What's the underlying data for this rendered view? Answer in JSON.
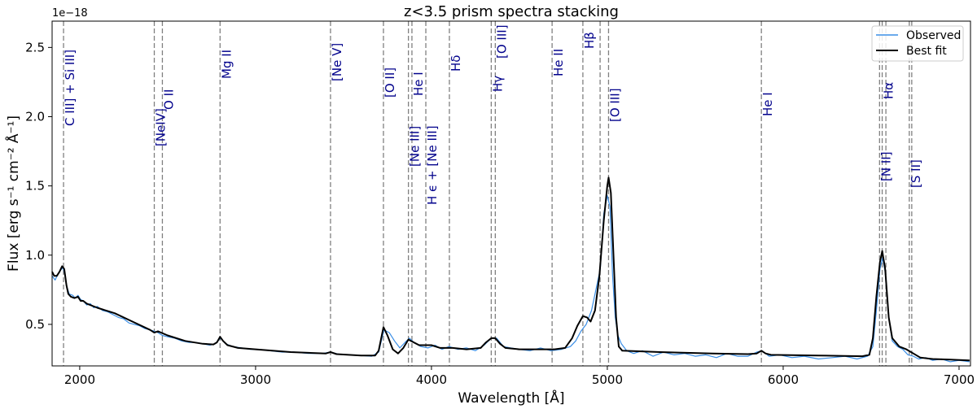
{
  "chart_data": {
    "type": "line",
    "title": "z<3.5 prism spectra stacking",
    "xlabel": "Wavelength [Å]",
    "ylabel": "Flux  [erg s⁻¹ cm⁻² Å⁻¹]",
    "y_offset_label": "1e−18",
    "xlim": [
      1843,
      7065
    ],
    "ylim": [
      0.2,
      2.69
    ],
    "xticks": [
      2000,
      3000,
      4000,
      5000,
      6000,
      7000
    ],
    "yticks": [
      0.5,
      1.0,
      1.5,
      2.0,
      2.5
    ],
    "ytick_labels": [
      "0.5",
      "1.0",
      "1.5",
      "2.0",
      "2.5"
    ],
    "grid": false,
    "legend_position": "top-right",
    "series": [
      {
        "name": "Observed",
        "color": "#3a8ee6",
        "x": [
          1843,
          1860,
          1875,
          1890,
          1905,
          1915,
          1925,
          1940,
          1960,
          1975,
          1990,
          2005,
          2020,
          2040,
          2060,
          2080,
          2100,
          2130,
          2160,
          2190,
          2220,
          2250,
          2280,
          2310,
          2340,
          2370,
          2400,
          2425,
          2445,
          2470,
          2500,
          2540,
          2580,
          2620,
          2660,
          2700,
          2740,
          2770,
          2800,
          2830,
          2870,
          2920,
          2970,
          3020,
          3080,
          3150,
          3220,
          3300,
          3380,
          3426,
          3470,
          3530,
          3600,
          3660,
          3700,
          3730,
          3760,
          3790,
          3820,
          3850,
          3875,
          3900,
          3940,
          3980,
          4020,
          4060,
          4100,
          4150,
          4200,
          4250,
          4300,
          4340,
          4370,
          4410,
          4450,
          4500,
          4560,
          4620,
          4680,
          4740,
          4790,
          4820,
          4850,
          4880,
          4910,
          4940,
          4960,
          4980,
          5000,
          5015,
          5030,
          5045,
          5060,
          5080,
          5110,
          5150,
          5200,
          5260,
          5320,
          5380,
          5440,
          5500,
          5560,
          5620,
          5680,
          5740,
          5800,
          5850,
          5880,
          5920,
          5980,
          6050,
          6120,
          6200,
          6280,
          6350,
          6420,
          6480,
          6510,
          6530,
          6550,
          6565,
          6580,
          6600,
          6620,
          6650,
          6680,
          6710,
          6740,
          6770,
          6810,
          6850,
          6900,
          6950,
          7000,
          7060
        ],
        "y": [
          0.85,
          0.82,
          0.86,
          0.89,
          0.91,
          0.86,
          0.78,
          0.72,
          0.71,
          0.69,
          0.71,
          0.68,
          0.67,
          0.64,
          0.65,
          0.62,
          0.63,
          0.6,
          0.59,
          0.57,
          0.55,
          0.54,
          0.51,
          0.5,
          0.49,
          0.47,
          0.46,
          0.45,
          0.44,
          0.42,
          0.41,
          0.4,
          0.38,
          0.37,
          0.37,
          0.36,
          0.35,
          0.36,
          0.4,
          0.36,
          0.34,
          0.33,
          0.32,
          0.32,
          0.31,
          0.3,
          0.3,
          0.29,
          0.29,
          0.3,
          0.285,
          0.28,
          0.275,
          0.27,
          0.3,
          0.46,
          0.44,
          0.38,
          0.33,
          0.37,
          0.4,
          0.37,
          0.34,
          0.33,
          0.35,
          0.32,
          0.34,
          0.32,
          0.33,
          0.31,
          0.35,
          0.4,
          0.4,
          0.34,
          0.33,
          0.32,
          0.31,
          0.33,
          0.31,
          0.32,
          0.34,
          0.38,
          0.45,
          0.5,
          0.6,
          0.78,
          0.9,
          1.3,
          1.43,
          1.35,
          0.85,
          0.55,
          0.42,
          0.36,
          0.31,
          0.29,
          0.31,
          0.27,
          0.3,
          0.28,
          0.29,
          0.27,
          0.28,
          0.26,
          0.29,
          0.27,
          0.27,
          0.3,
          0.31,
          0.27,
          0.28,
          0.26,
          0.27,
          0.25,
          0.26,
          0.27,
          0.25,
          0.27,
          0.34,
          0.6,
          0.9,
          0.98,
          0.88,
          0.55,
          0.38,
          0.34,
          0.32,
          0.28,
          0.27,
          0.25,
          0.26,
          0.24,
          0.25,
          0.23,
          0.24,
          0.23
        ]
      },
      {
        "name": "Best fit",
        "color": "#000000",
        "x": [
          1843,
          1855,
          1870,
          1885,
          1900,
          1912,
          1925,
          1935,
          1950,
          1970,
          1990,
          2005,
          2020,
          2040,
          2100,
          2200,
          2300,
          2400,
          2424,
          2445,
          2500,
          2600,
          2700,
          2760,
          2780,
          2798,
          2815,
          2840,
          2900,
          3000,
          3200,
          3400,
          3426,
          3460,
          3600,
          3680,
          3700,
          3727,
          3750,
          3780,
          3810,
          3840,
          3869,
          3900,
          3930,
          3970,
          4000,
          4050,
          4100,
          4120,
          4200,
          4280,
          4310,
          4340,
          4363,
          4390,
          4420,
          4500,
          4600,
          4700,
          4760,
          4800,
          4830,
          4861,
          4885,
          4905,
          4930,
          4955,
          4980,
          5000,
          5007,
          5020,
          5035,
          5050,
          5065,
          5085,
          5300,
          5600,
          5800,
          5850,
          5876,
          5900,
          5930,
          6200,
          6450,
          6490,
          6510,
          6530,
          6550,
          6563,
          6580,
          6600,
          6620,
          6660,
          6700,
          6740,
          6780,
          6850,
          6950,
          7060
        ],
        "y": [
          0.88,
          0.85,
          0.85,
          0.88,
          0.92,
          0.9,
          0.78,
          0.72,
          0.7,
          0.69,
          0.7,
          0.67,
          0.67,
          0.65,
          0.62,
          0.58,
          0.52,
          0.46,
          0.44,
          0.45,
          0.42,
          0.38,
          0.36,
          0.355,
          0.37,
          0.41,
          0.38,
          0.35,
          0.33,
          0.32,
          0.3,
          0.29,
          0.3,
          0.285,
          0.275,
          0.275,
          0.31,
          0.48,
          0.42,
          0.32,
          0.29,
          0.33,
          0.39,
          0.37,
          0.35,
          0.35,
          0.35,
          0.33,
          0.33,
          0.33,
          0.32,
          0.33,
          0.37,
          0.4,
          0.4,
          0.36,
          0.33,
          0.32,
          0.32,
          0.32,
          0.33,
          0.4,
          0.49,
          0.56,
          0.55,
          0.52,
          0.6,
          0.85,
          1.25,
          1.5,
          1.56,
          1.45,
          1.0,
          0.55,
          0.34,
          0.31,
          0.3,
          0.29,
          0.285,
          0.29,
          0.31,
          0.29,
          0.28,
          0.275,
          0.27,
          0.28,
          0.4,
          0.7,
          0.95,
          1.03,
          0.9,
          0.55,
          0.4,
          0.34,
          0.32,
          0.29,
          0.26,
          0.25,
          0.245,
          0.24
        ]
      }
    ],
    "emission_lines": [
      {
        "wavelength": 1908,
        "label": "C III] + Si III]"
      },
      {
        "wavelength": 2424,
        "label": "[NeIV]"
      },
      {
        "wavelength": 2470,
        "label": "O II"
      },
      {
        "wavelength": 2798,
        "label": "Mg II"
      },
      {
        "wavelength": 3426,
        "label": "[Ne V]"
      },
      {
        "wavelength": 3727,
        "label": "[O II]"
      },
      {
        "wavelength": 3869,
        "label": "[Ne III]"
      },
      {
        "wavelength": 3889,
        "label": "He I"
      },
      {
        "wavelength": 3968,
        "label": "H ϵ + [Ne III]"
      },
      {
        "wavelength": 4102,
        "label": "Hδ"
      },
      {
        "wavelength": 4340,
        "label": "Hγ"
      },
      {
        "wavelength": 4363,
        "label": "[O III]"
      },
      {
        "wavelength": 4686,
        "label": "He II"
      },
      {
        "wavelength": 4861,
        "label": "Hβ"
      },
      {
        "wavelength": 4959,
        "label": ""
      },
      {
        "wavelength": 5007,
        "label": "[O III]"
      },
      {
        "wavelength": 5876,
        "label": "He I"
      },
      {
        "wavelength": 6548,
        "label": "[N II]"
      },
      {
        "wavelength": 6563,
        "label": "Hα"
      },
      {
        "wavelength": 6584,
        "label": ""
      },
      {
        "wavelength": 6717,
        "label": "[S II]"
      },
      {
        "wavelength": 6731,
        "label": ""
      }
    ],
    "emission_line_color": "#808080",
    "label_color": "#00008b"
  }
}
